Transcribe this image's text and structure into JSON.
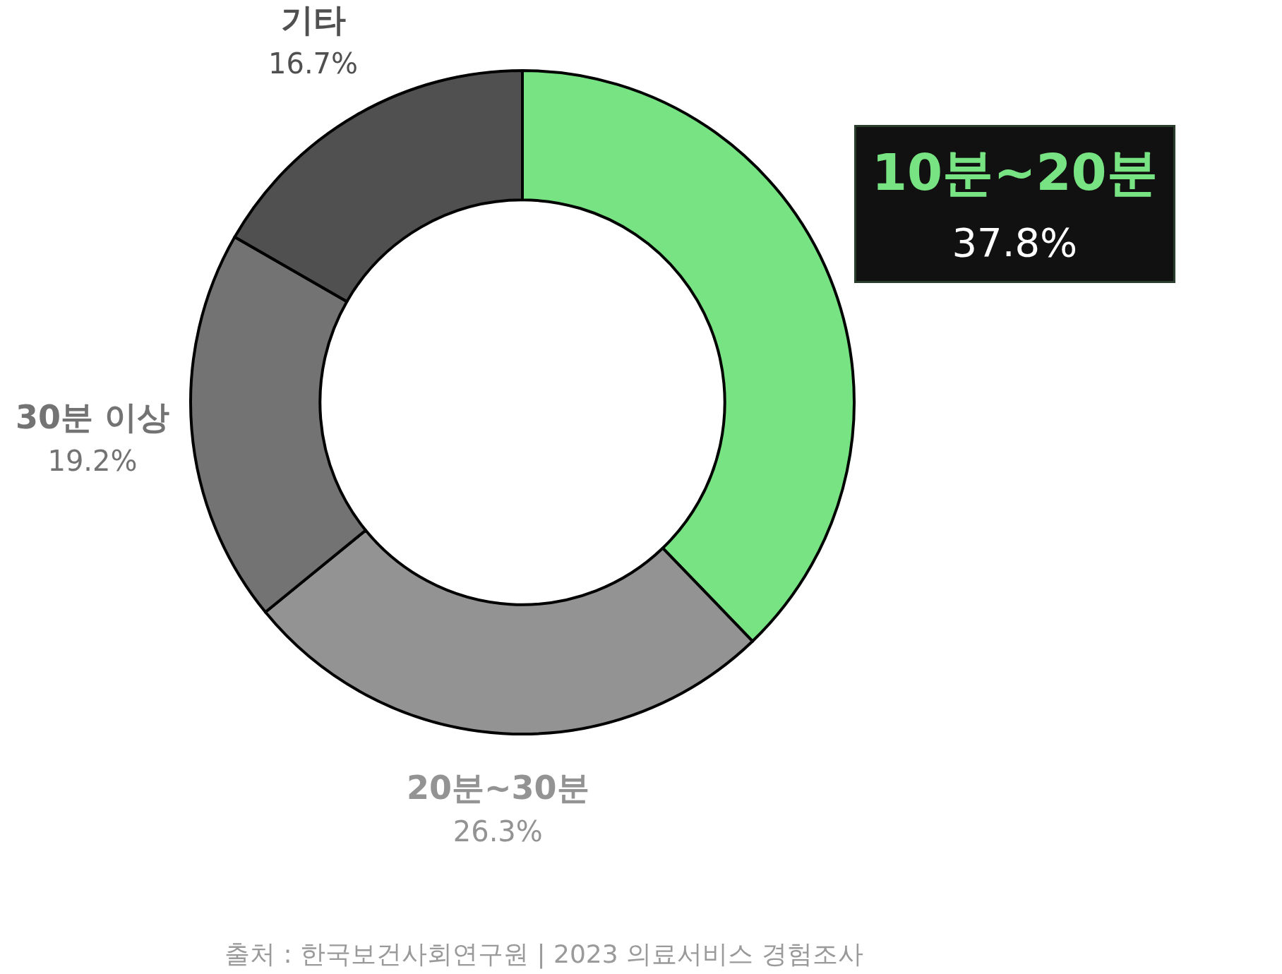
{
  "chart_data": {
    "type": "donut",
    "categories": [
      "10분~20분",
      "20분~30분",
      "30분 이상",
      "기타"
    ],
    "values": [
      37.8,
      26.3,
      19.2,
      16.7
    ],
    "value_labels": [
      "37.8%",
      "26.3%",
      "19.2%",
      "16.7%"
    ],
    "colors": [
      "#77e383",
      "#939393",
      "#737373",
      "#505050"
    ],
    "legend": false,
    "annotations": [
      "출처 : 한국보건사회연구원 | 2023 의료서비스 경험조사"
    ]
  }
}
